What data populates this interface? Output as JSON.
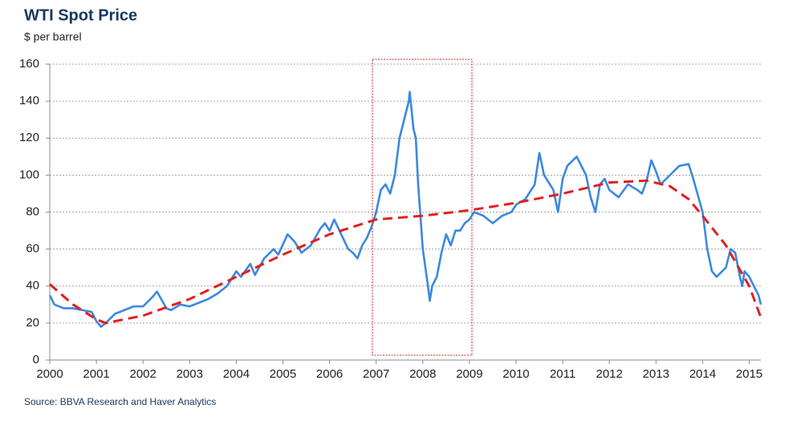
{
  "chart_data": {
    "type": "line",
    "title": "WTI Spot Price",
    "subtitle": "$ per barrel",
    "source": "Source:  BBVA Research and Haver Analytics",
    "xlim": [
      2000,
      2015.25
    ],
    "xticks": [
      2000,
      2001,
      2002,
      2003,
      2004,
      2005,
      2006,
      2007,
      2008,
      2009,
      2010,
      2011,
      2012,
      2013,
      2014,
      2015
    ],
    "ylim": [
      0,
      160
    ],
    "yticks": [
      0,
      20,
      40,
      60,
      80,
      100,
      120,
      140,
      160
    ],
    "grid": true,
    "series": [
      {
        "color": "#3b88e0",
        "style": "solid",
        "x": [
          2000.0,
          2000.1,
          2000.3,
          2000.5,
          2000.7,
          2000.9,
          2001.0,
          2001.1,
          2001.2,
          2001.4,
          2001.6,
          2001.8,
          2002.0,
          2002.2,
          2002.3,
          2002.5,
          2002.6,
          2002.8,
          2003.0,
          2003.2,
          2003.4,
          2003.6,
          2003.8,
          2004.0,
          2004.1,
          2004.3,
          2004.4,
          2004.6,
          2004.8,
          2004.9,
          2005.1,
          2005.25,
          2005.4,
          2005.6,
          2005.8,
          2005.9,
          2006.0,
          2006.1,
          2006.25,
          2006.4,
          2006.5,
          2006.6,
          2006.7,
          2006.8,
          2006.9,
          2007.0,
          2007.1,
          2007.2,
          2007.3,
          2007.4,
          2007.5,
          2007.6,
          2007.7,
          2007.72,
          2007.8,
          2007.85,
          2007.9,
          2008.0,
          2008.1,
          2008.15,
          2008.2,
          2008.3,
          2008.4,
          2008.5,
          2008.6,
          2008.7,
          2008.8,
          2008.9,
          2009.0,
          2009.1,
          2009.3,
          2009.5,
          2009.7,
          2009.9,
          2010.0,
          2010.2,
          2010.4,
          2010.5,
          2010.6,
          2010.8,
          2010.9,
          2011.0,
          2011.1,
          2011.3,
          2011.5,
          2011.6,
          2011.7,
          2011.8,
          2011.9,
          2012.0,
          2012.2,
          2012.4,
          2012.6,
          2012.7,
          2012.8,
          2012.9,
          2013.0,
          2013.1,
          2013.3,
          2013.5,
          2013.7,
          2013.8,
          2014.0,
          2014.1,
          2014.2,
          2014.3,
          2014.5,
          2014.6,
          2014.7,
          2014.8,
          2014.85,
          2014.9,
          2015.0,
          2015.1,
          2015.2,
          2015.25
        ],
        "values": [
          35,
          30,
          28,
          28,
          27,
          26,
          21,
          18,
          20,
          25,
          27,
          29,
          29,
          34,
          37,
          28,
          27,
          30,
          29,
          31,
          33,
          36,
          40,
          48,
          45,
          52,
          46,
          55,
          60,
          57,
          68,
          64,
          58,
          62,
          71,
          74,
          70,
          76,
          68,
          60,
          58,
          55,
          62,
          66,
          72,
          80,
          92,
          95,
          90,
          100,
          120,
          130,
          140,
          145,
          125,
          120,
          95,
          60,
          42,
          32,
          40,
          45,
          58,
          68,
          62,
          70,
          70,
          74,
          76,
          80,
          78,
          74,
          78,
          80,
          84,
          87,
          95,
          112,
          100,
          92,
          80,
          98,
          105,
          110,
          100,
          88,
          80,
          95,
          98,
          92,
          88,
          95,
          92,
          90,
          97,
          108,
          102,
          95,
          100,
          105,
          106,
          98,
          80,
          60,
          48,
          45,
          50,
          60,
          58,
          45,
          40,
          48,
          45,
          40,
          35,
          30
        ]
      },
      {
        "color": "#e41e1e",
        "style": "dashed",
        "x": [
          2000,
          2000.5,
          2001.0,
          2001.2,
          2002,
          2003,
          2004,
          2005,
          2006,
          2007,
          2008,
          2009,
          2010,
          2011,
          2012,
          2012.8,
          2013.3,
          2013.7,
          2014,
          2014.5,
          2015,
          2015.25
        ],
        "values": [
          41,
          30,
          22,
          20,
          24,
          33,
          45,
          57,
          68,
          76,
          78,
          81,
          85,
          90,
          96,
          97,
          94,
          87,
          78,
          62,
          40,
          23
        ]
      }
    ]
  }
}
